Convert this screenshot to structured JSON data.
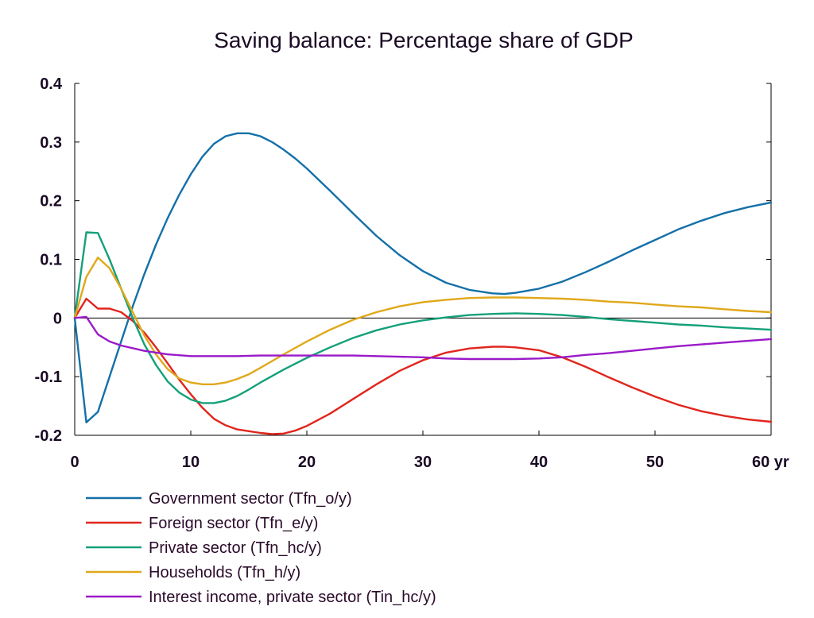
{
  "chart_data": {
    "type": "line",
    "title": "Saving balance: Percentage share of GDP",
    "xlabel": "",
    "ylabel": "",
    "xlim": [
      0,
      60
    ],
    "ylim": [
      -0.2,
      0.4
    ],
    "x_ticks": [
      0,
      10,
      20,
      30,
      40,
      50,
      60
    ],
    "x_tick_labels": [
      "0",
      "10",
      "20",
      "30",
      "40",
      "50",
      "60 yr"
    ],
    "y_ticks": [
      -0.2,
      -0.1,
      0,
      0.1,
      0.2,
      0.3,
      0.4
    ],
    "y_tick_labels": [
      "-0.2",
      "-0.1",
      "0",
      "0.1",
      "0.2",
      "0.3",
      "0.4"
    ],
    "grid": false,
    "zero_line": true,
    "legend_position": "bottom",
    "series": [
      {
        "name": "Government sector (Tfn_o/y)",
        "color": "#1470a8",
        "points": [
          [
            0,
            0
          ],
          [
            1,
            -0.178
          ],
          [
            2,
            -0.16
          ],
          [
            3,
            -0.1
          ],
          [
            4,
            -0.04
          ],
          [
            5,
            0.02
          ],
          [
            6,
            0.075
          ],
          [
            7,
            0.125
          ],
          [
            8,
            0.17
          ],
          [
            9,
            0.21
          ],
          [
            10,
            0.245
          ],
          [
            11,
            0.275
          ],
          [
            12,
            0.297
          ],
          [
            13,
            0.31
          ],
          [
            14,
            0.315
          ],
          [
            15,
            0.315
          ],
          [
            16,
            0.31
          ],
          [
            17,
            0.3
          ],
          [
            18,
            0.287
          ],
          [
            19,
            0.272
          ],
          [
            20,
            0.255
          ],
          [
            22,
            0.217
          ],
          [
            24,
            0.178
          ],
          [
            26,
            0.14
          ],
          [
            28,
            0.107
          ],
          [
            30,
            0.08
          ],
          [
            32,
            0.06
          ],
          [
            34,
            0.048
          ],
          [
            36,
            0.042
          ],
          [
            37,
            0.041
          ],
          [
            38,
            0.043
          ],
          [
            40,
            0.05
          ],
          [
            42,
            0.062
          ],
          [
            44,
            0.078
          ],
          [
            46,
            0.096
          ],
          [
            48,
            0.115
          ],
          [
            50,
            0.133
          ],
          [
            52,
            0.151
          ],
          [
            54,
            0.166
          ],
          [
            56,
            0.179
          ],
          [
            58,
            0.189
          ],
          [
            60,
            0.197
          ]
        ]
      },
      {
        "name": "Foreign sector (Tfn_e/y)",
        "color": "#e0261e",
        "points": [
          [
            0,
            0
          ],
          [
            1,
            0.033
          ],
          [
            2,
            0.016
          ],
          [
            3,
            0.016
          ],
          [
            4,
            0.01
          ],
          [
            5,
            -0.005
          ],
          [
            6,
            -0.025
          ],
          [
            7,
            -0.05
          ],
          [
            8,
            -0.077
          ],
          [
            9,
            -0.105
          ],
          [
            10,
            -0.13
          ],
          [
            11,
            -0.153
          ],
          [
            12,
            -0.172
          ],
          [
            13,
            -0.183
          ],
          [
            14,
            -0.19
          ],
          [
            15,
            -0.193
          ],
          [
            16,
            -0.196
          ],
          [
            17,
            -0.198
          ],
          [
            18,
            -0.197
          ],
          [
            19,
            -0.192
          ],
          [
            20,
            -0.184
          ],
          [
            22,
            -0.163
          ],
          [
            24,
            -0.138
          ],
          [
            26,
            -0.113
          ],
          [
            28,
            -0.09
          ],
          [
            30,
            -0.072
          ],
          [
            32,
            -0.059
          ],
          [
            34,
            -0.052
          ],
          [
            36,
            -0.049
          ],
          [
            37,
            -0.049
          ],
          [
            38,
            -0.05
          ],
          [
            40,
            -0.055
          ],
          [
            42,
            -0.067
          ],
          [
            44,
            -0.083
          ],
          [
            46,
            -0.101
          ],
          [
            48,
            -0.118
          ],
          [
            50,
            -0.134
          ],
          [
            52,
            -0.148
          ],
          [
            54,
            -0.159
          ],
          [
            56,
            -0.167
          ],
          [
            58,
            -0.173
          ],
          [
            60,
            -0.177
          ]
        ]
      },
      {
        "name": "Private sector (Tfn_hc/y)",
        "color": "#14a07a",
        "points": [
          [
            0,
            0
          ],
          [
            1,
            0.146
          ],
          [
            2,
            0.145
          ],
          [
            3,
            0.1
          ],
          [
            4,
            0.05
          ],
          [
            5,
            0.0
          ],
          [
            6,
            -0.045
          ],
          [
            7,
            -0.08
          ],
          [
            8,
            -0.108
          ],
          [
            9,
            -0.127
          ],
          [
            10,
            -0.139
          ],
          [
            11,
            -0.145
          ],
          [
            12,
            -0.145
          ],
          [
            13,
            -0.141
          ],
          [
            14,
            -0.133
          ],
          [
            15,
            -0.122
          ],
          [
            16,
            -0.11
          ],
          [
            18,
            -0.088
          ],
          [
            20,
            -0.068
          ],
          [
            22,
            -0.05
          ],
          [
            24,
            -0.034
          ],
          [
            26,
            -0.021
          ],
          [
            28,
            -0.011
          ],
          [
            30,
            -0.004
          ],
          [
            32,
            0.001
          ],
          [
            34,
            0.005
          ],
          [
            36,
            0.007
          ],
          [
            38,
            0.008
          ],
          [
            40,
            0.007
          ],
          [
            42,
            0.005
          ],
          [
            44,
            0.002
          ],
          [
            46,
            -0.002
          ],
          [
            48,
            -0.005
          ],
          [
            50,
            -0.008
          ],
          [
            52,
            -0.011
          ],
          [
            54,
            -0.013
          ],
          [
            56,
            -0.016
          ],
          [
            58,
            -0.018
          ],
          [
            60,
            -0.02
          ]
        ]
      },
      {
        "name": "Households (Tfn_h/y)",
        "color": "#e0a81a",
        "points": [
          [
            0,
            0
          ],
          [
            1,
            0.07
          ],
          [
            2,
            0.103
          ],
          [
            3,
            0.085
          ],
          [
            4,
            0.05
          ],
          [
            5,
            0.01
          ],
          [
            6,
            -0.03
          ],
          [
            7,
            -0.062
          ],
          [
            8,
            -0.087
          ],
          [
            9,
            -0.103
          ],
          [
            10,
            -0.11
          ],
          [
            11,
            -0.113
          ],
          [
            12,
            -0.113
          ],
          [
            13,
            -0.11
          ],
          [
            14,
            -0.104
          ],
          [
            15,
            -0.096
          ],
          [
            16,
            -0.085
          ],
          [
            18,
            -0.062
          ],
          [
            20,
            -0.04
          ],
          [
            22,
            -0.02
          ],
          [
            24,
            -0.003
          ],
          [
            26,
            0.01
          ],
          [
            28,
            0.02
          ],
          [
            30,
            0.027
          ],
          [
            32,
            0.031
          ],
          [
            34,
            0.034
          ],
          [
            36,
            0.035
          ],
          [
            38,
            0.035
          ],
          [
            40,
            0.034
          ],
          [
            42,
            0.033
          ],
          [
            44,
            0.031
          ],
          [
            46,
            0.028
          ],
          [
            48,
            0.026
          ],
          [
            50,
            0.023
          ],
          [
            52,
            0.02
          ],
          [
            54,
            0.018
          ],
          [
            56,
            0.015
          ],
          [
            58,
            0.012
          ],
          [
            60,
            0.01
          ]
        ]
      },
      {
        "name": "Interest income, private sector (Tin_hc/y)",
        "color": "#9a1ac8",
        "points": [
          [
            0,
            0
          ],
          [
            1,
            0.002
          ],
          [
            2,
            -0.028
          ],
          [
            3,
            -0.04
          ],
          [
            4,
            -0.047
          ],
          [
            6,
            -0.056
          ],
          [
            8,
            -0.062
          ],
          [
            10,
            -0.065
          ],
          [
            12,
            -0.065
          ],
          [
            14,
            -0.065
          ],
          [
            16,
            -0.064
          ],
          [
            18,
            -0.064
          ],
          [
            20,
            -0.064
          ],
          [
            22,
            -0.064
          ],
          [
            24,
            -0.064
          ],
          [
            26,
            -0.065
          ],
          [
            28,
            -0.066
          ],
          [
            30,
            -0.067
          ],
          [
            32,
            -0.069
          ],
          [
            34,
            -0.07
          ],
          [
            36,
            -0.07
          ],
          [
            38,
            -0.07
          ],
          [
            40,
            -0.069
          ],
          [
            42,
            -0.067
          ],
          [
            44,
            -0.063
          ],
          [
            46,
            -0.06
          ],
          [
            48,
            -0.056
          ],
          [
            50,
            -0.052
          ],
          [
            52,
            -0.048
          ],
          [
            54,
            -0.045
          ],
          [
            56,
            -0.042
          ],
          [
            58,
            -0.039
          ],
          [
            60,
            -0.036
          ]
        ]
      }
    ]
  }
}
